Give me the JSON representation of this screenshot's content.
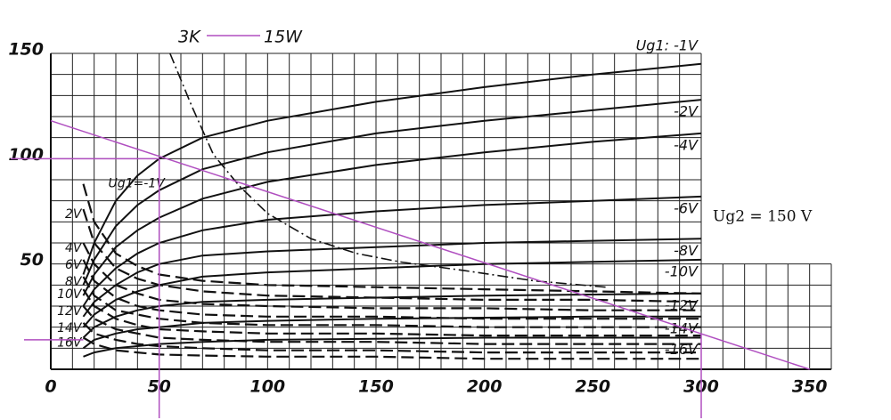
{
  "chart_data": {
    "type": "line",
    "annotation": "Ug2 = 150 V",
    "xlim": [
      0,
      360
    ],
    "ylim": [
      0,
      150
    ],
    "xticks": [
      0,
      50,
      100,
      150,
      200,
      250,
      300,
      350
    ],
    "yticks": [
      0,
      50,
      100,
      150
    ],
    "grid_step": 10,
    "grid_regions": [
      {
        "x": [
          0,
          300
        ],
        "y": [
          0,
          150
        ]
      },
      {
        "x": [
          300,
          360
        ],
        "y": [
          0,
          50
        ]
      }
    ],
    "x": [
      15,
      20,
      30,
      40,
      50,
      70,
      100,
      150,
      200,
      250,
      300
    ],
    "series": [
      {
        "name": "Ug1: -1V",
        "style": "solid",
        "side": "right",
        "color": "#111",
        "values": [
          45,
          60,
          80,
          92,
          100,
          110,
          118,
          127,
          134,
          140,
          145
        ]
      },
      {
        "name": "-2V",
        "style": "solid",
        "side": "right",
        "color": "#111",
        "values": [
          40,
          52,
          68,
          78,
          85,
          95,
          103,
          112,
          118,
          123,
          128
        ]
      },
      {
        "name": "-4V",
        "style": "solid",
        "side": "right",
        "color": "#111",
        "values": [
          35,
          45,
          58,
          66,
          72,
          81,
          89,
          97,
          103,
          108,
          112
        ]
      },
      {
        "name": "-6V",
        "style": "solid",
        "side": "right",
        "color": "#111",
        "values": [
          30,
          38,
          48,
          55,
          60,
          66,
          71,
          75,
          78,
          80,
          82
        ]
      },
      {
        "name": "-8V",
        "style": "solid",
        "side": "right",
        "color": "#111",
        "values": [
          25,
          32,
          40,
          46,
          50,
          54,
          56,
          58,
          60,
          61,
          62
        ]
      },
      {
        "name": "-10V",
        "style": "solid",
        "side": "right",
        "color": "#111",
        "values": [
          20,
          26,
          33,
          37,
          40,
          44,
          46,
          48,
          50,
          51,
          52
        ]
      },
      {
        "name": "-12V",
        "style": "solid",
        "side": "right",
        "color": "#111",
        "values": [
          15,
          20,
          25,
          28,
          30,
          32,
          33,
          34,
          35,
          35.5,
          36
        ]
      },
      {
        "name": "-14V",
        "style": "solid",
        "side": "right",
        "color": "#111",
        "values": [
          10,
          14,
          17,
          19,
          20,
          22,
          23,
          24,
          24.5,
          25,
          25
        ]
      },
      {
        "name": "-16V",
        "style": "solid",
        "side": "right",
        "color": "#111",
        "values": [
          6,
          8,
          10,
          11,
          12,
          13,
          14,
          14.5,
          15,
          15,
          15
        ]
      },
      {
        "name": "Ug1=-1V",
        "style": "dashed",
        "side": "left",
        "color": "#111",
        "values": [
          88,
          70,
          55,
          49,
          45,
          42,
          40,
          39,
          38,
          37,
          36
        ]
      },
      {
        "name": "2V",
        "style": "dashed",
        "side": "left",
        "color": "#111",
        "values": [
          76,
          60,
          48,
          43,
          40,
          37,
          35,
          34,
          33,
          33,
          32
        ]
      },
      {
        "name": "4V",
        "style": "dashed",
        "side": "left",
        "color": "#111",
        "values": [
          60,
          50,
          40,
          36,
          33,
          31,
          30,
          29,
          29,
          28,
          28
        ]
      },
      {
        "name": "6V",
        "style": "dashed",
        "side": "left",
        "color": "#111",
        "values": [
          52,
          42,
          34,
          30,
          28,
          26,
          25,
          25,
          24,
          24,
          24
        ]
      },
      {
        "name": "8V",
        "style": "dashed",
        "side": "left",
        "color": "#111",
        "values": [
          44,
          35,
          28,
          26,
          24,
          22,
          21,
          21,
          20,
          20,
          20
        ]
      },
      {
        "name": "10V",
        "style": "dashed",
        "side": "left",
        "color": "#111",
        "values": [
          38,
          30,
          24,
          21,
          19,
          18,
          17,
          17,
          16,
          16,
          16
        ]
      },
      {
        "name": "12V",
        "style": "dashed",
        "side": "left",
        "color": "#111",
        "values": [
          30,
          24,
          19,
          17,
          15,
          14,
          13,
          13,
          12,
          12,
          12
        ]
      },
      {
        "name": "14V",
        "style": "dashed",
        "side": "left",
        "color": "#111",
        "values": [
          22,
          17,
          14,
          12,
          11,
          10,
          9,
          9,
          8,
          8,
          8
        ]
      },
      {
        "name": "16V",
        "style": "dashed",
        "side": "left",
        "color": "#111",
        "values": [
          15,
          12,
          9,
          8,
          7,
          6.5,
          6,
          6,
          5,
          5,
          5
        ]
      }
    ],
    "load_line": {
      "label": "3K",
      "color": "#b04fc0",
      "x": [
        0,
        350
      ],
      "values": [
        118,
        0
      ]
    },
    "hyperbola": {
      "label": "15W",
      "color": "#111",
      "x": [
        55,
        65,
        75,
        87,
        100,
        120,
        141,
        161,
        190,
        223,
        256
      ],
      "values": [
        150,
        125,
        102,
        87,
        74,
        62,
        55,
        51,
        47,
        42,
        39
      ]
    },
    "hlines": [
      {
        "y": 100,
        "x": 50
      },
      {
        "y": 14,
        "x": 15
      }
    ],
    "vlines": [
      {
        "x": 50,
        "y": 100
      },
      {
        "x": 300,
        "y": 17
      }
    ]
  }
}
